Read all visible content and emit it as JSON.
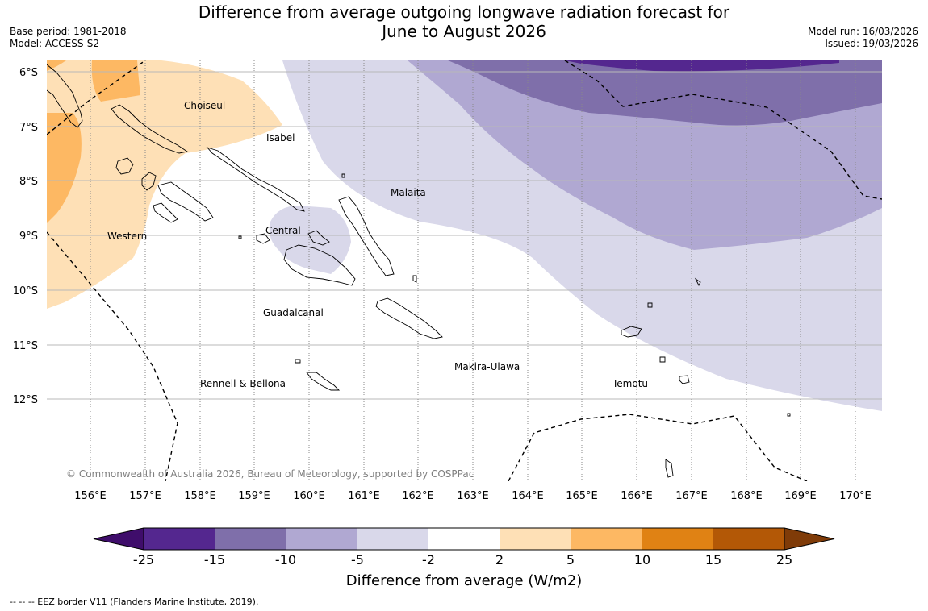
{
  "title_line1": "Difference from average outgoing longwave radiation forecast for",
  "title_line2": "June to August 2026",
  "base_period": "Base period: 1981-2018",
  "model": "Model: ACCESS-S2",
  "model_run": "Model run: 16/03/2026",
  "issued": "Issued: 19/03/2026",
  "lat_labels": [
    "6°S",
    "7°S",
    "8°S",
    "9°S",
    "10°S",
    "11°S",
    "12°S"
  ],
  "lon_labels": [
    "156°E",
    "157°E",
    "158°E",
    "159°E",
    "160°E",
    "161°E",
    "162°E",
    "163°E",
    "164°E",
    "165°E",
    "166°E",
    "167°E",
    "168°E",
    "169°E",
    "170°E"
  ],
  "provinces": [
    "Choiseul",
    "Isabel",
    "Malaita",
    "Western",
    "Central",
    "Guadalcanal",
    "Rennell & Bellona",
    "Makira-Ulawa",
    "Temotu"
  ],
  "copyright": "© Commonwealth of Australia 2026, Bureau of Meteorology, supported by COSPPac",
  "colorbar": {
    "title": "Difference from average (W/m2)",
    "ticks": [
      "-25",
      "-15",
      "-10",
      "-5",
      "-2",
      "2",
      "5",
      "10",
      "15",
      "25"
    ],
    "colors": [
      "#3f0d6b",
      "#54278f",
      "#7f6faa",
      "#b0a8d2",
      "#d9d8ea",
      "#ffffff",
      "#fee0b6",
      "#fdb863",
      "#e08214",
      "#b35806",
      "#7f3b08"
    ]
  },
  "footer": "--  --  -- EEZ border V11 (Flanders Marine Institute, 2019)."
}
